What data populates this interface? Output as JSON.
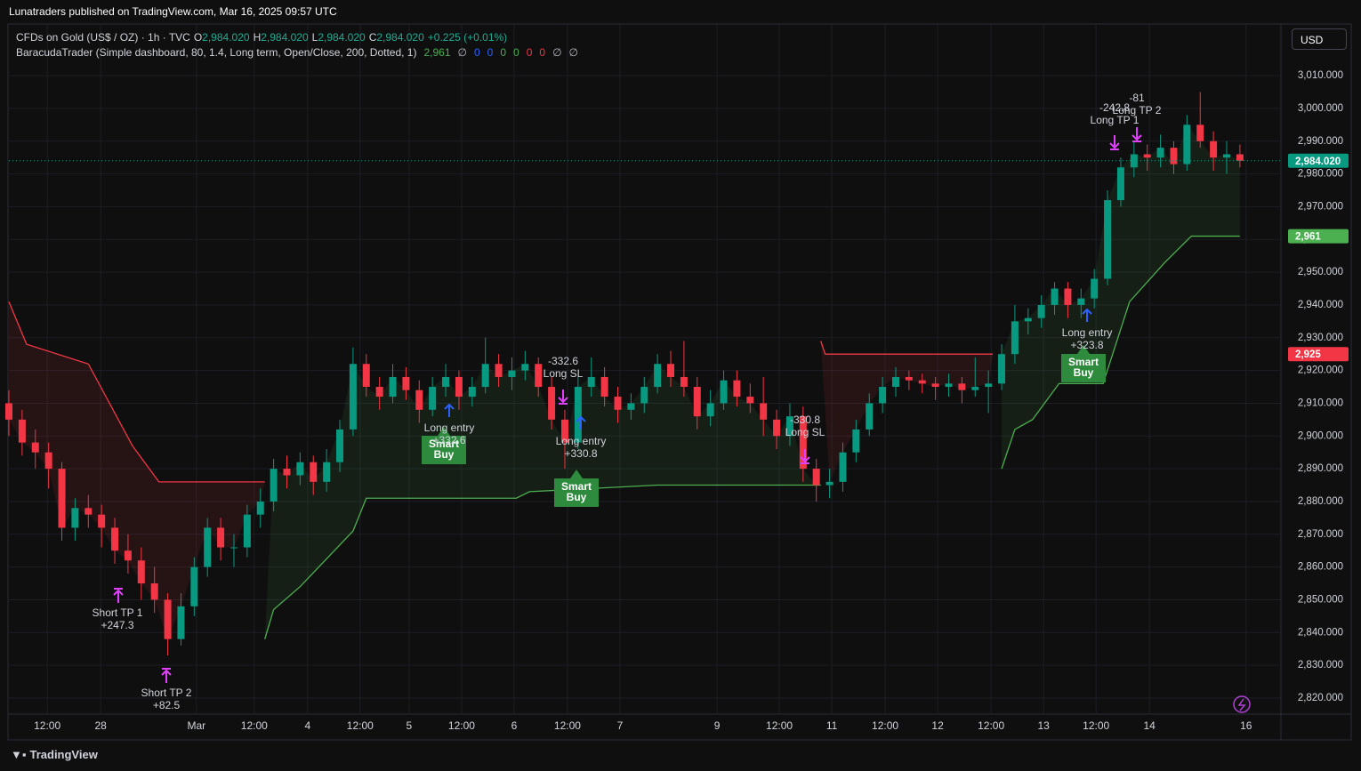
{
  "header": {
    "title": "Lunatraders published on TradingView.com, Mar 16, 2025 09:57 UTC"
  },
  "footer": {
    "brand": "TradingView"
  },
  "currency": "USD",
  "legend": {
    "symbol": "CFDs on Gold (US$ / OZ) · 1h · TVC",
    "ohlc": [
      {
        "key": "O",
        "value": "2,984.020"
      },
      {
        "key": "H",
        "value": "2,984.020"
      },
      {
        "key": "L",
        "value": "2,984.020"
      },
      {
        "key": "C",
        "value": "2,984.020"
      }
    ],
    "change": "+0.225 (+0.01%)",
    "indicator": "BaracudaTrader (Simple dashboard, 80, 1.4, Long term, Open/Close, 200, Dotted, 1)",
    "indicator_values": [
      {
        "text": "2,961",
        "color": "#4caf50"
      },
      {
        "text": "∅",
        "color": "#b2b5be"
      },
      {
        "text": "0",
        "color": "#2962ff"
      },
      {
        "text": "0",
        "color": "#2962ff"
      },
      {
        "text": "0",
        "color": "#4caf50"
      },
      {
        "text": "0",
        "color": "#4caf50"
      },
      {
        "text": "0",
        "color": "#f23645"
      },
      {
        "text": "0",
        "color": "#f23645"
      },
      {
        "text": "∅",
        "color": "#b2b5be"
      },
      {
        "text": "∅",
        "color": "#b2b5be"
      }
    ]
  },
  "chart_data": {
    "type": "candlestick",
    "up_color": "#089981",
    "down_color": "#f23645",
    "t": [
      0,
      3,
      6,
      9,
      12,
      15,
      18,
      21,
      24,
      27,
      30,
      33,
      36,
      39,
      42,
      45,
      48,
      51,
      54,
      57,
      60,
      63,
      66,
      69,
      72,
      75,
      78,
      81,
      84,
      87,
      90,
      93,
      96,
      99,
      102,
      105,
      108,
      111,
      114,
      117,
      120,
      123,
      126,
      129,
      132,
      135,
      138,
      141,
      144,
      147,
      150,
      153,
      156,
      159,
      162,
      165,
      168,
      171,
      174,
      177,
      180,
      183,
      186,
      189,
      192,
      195,
      198,
      201,
      204,
      207,
      210,
      213,
      216,
      219,
      222,
      225,
      228,
      231,
      234,
      237,
      240,
      243,
      246,
      249,
      252,
      255,
      258,
      261,
      264,
      267,
      270,
      273,
      276,
      279
    ],
    "ohlc": [
      [
        2910,
        2914,
        2900,
        2905
      ],
      [
        2905,
        2908,
        2894,
        2898
      ],
      [
        2898,
        2902,
        2890,
        2895
      ],
      [
        2895,
        2898,
        2884,
        2890
      ],
      [
        2890,
        2892,
        2868,
        2872
      ],
      [
        2872,
        2881,
        2868,
        2878
      ],
      [
        2878,
        2882,
        2872,
        2876
      ],
      [
        2876,
        2879,
        2866,
        2872
      ],
      [
        2872,
        2875,
        2861,
        2865
      ],
      [
        2865,
        2870,
        2858,
        2862
      ],
      [
        2862,
        2866,
        2850,
        2855
      ],
      [
        2855,
        2860,
        2846,
        2850
      ],
      [
        2850,
        2852,
        2833,
        2838
      ],
      [
        2838,
        2852,
        2836,
        2848
      ],
      [
        2848,
        2863,
        2845,
        2860
      ],
      [
        2860,
        2875,
        2857,
        2872
      ],
      [
        2872,
        2875,
        2862,
        2866
      ],
      [
        2866,
        2870,
        2860,
        2866
      ],
      [
        2866,
        2879,
        2863,
        2876
      ],
      [
        2876,
        2884,
        2872,
        2880
      ],
      [
        2880,
        2893,
        2877,
        2890
      ],
      [
        2890,
        2894,
        2884,
        2888
      ],
      [
        2888,
        2895,
        2885,
        2892
      ],
      [
        2892,
        2894,
        2882,
        2886
      ],
      [
        2886,
        2896,
        2883,
        2892
      ],
      [
        2892,
        2905,
        2889,
        2902
      ],
      [
        2902,
        2927,
        2900,
        2922
      ],
      [
        2922,
        2925,
        2912,
        2915
      ],
      [
        2915,
        2918,
        2908,
        2912
      ],
      [
        2912,
        2922,
        2910,
        2918
      ],
      [
        2918,
        2921,
        2911,
        2914
      ],
      [
        2914,
        2917,
        2904,
        2908
      ],
      [
        2908,
        2918,
        2906,
        2915
      ],
      [
        2915,
        2922,
        2912,
        2918
      ],
      [
        2918,
        2920,
        2908,
        2912
      ],
      [
        2912,
        2918,
        2909,
        2915
      ],
      [
        2915,
        2930,
        2913,
        2922
      ],
      [
        2922,
        2925,
        2915,
        2918
      ],
      [
        2918,
        2924,
        2914,
        2920
      ],
      [
        2920,
        2926,
        2917,
        2922
      ],
      [
        2922,
        2924,
        2912,
        2915
      ],
      [
        2915,
        2918,
        2902,
        2905
      ],
      [
        2905,
        2908,
        2890,
        2898
      ],
      [
        2898,
        2918,
        2896,
        2915
      ],
      [
        2915,
        2924,
        2912,
        2918
      ],
      [
        2918,
        2921,
        2909,
        2912
      ],
      [
        2912,
        2915,
        2904,
        2908
      ],
      [
        2908,
        2913,
        2905,
        2910
      ],
      [
        2910,
        2918,
        2907,
        2915
      ],
      [
        2915,
        2925,
        2913,
        2922
      ],
      [
        2922,
        2926,
        2915,
        2918
      ],
      [
        2918,
        2929,
        2912,
        2915
      ],
      [
        2915,
        2918,
        2902,
        2906
      ],
      [
        2906,
        2914,
        2903,
        2910
      ],
      [
        2910,
        2920,
        2908,
        2917
      ],
      [
        2917,
        2920,
        2909,
        2912
      ],
      [
        2912,
        2916,
        2907,
        2910
      ],
      [
        2910,
        2918,
        2900,
        2905
      ],
      [
        2905,
        2908,
        2896,
        2900
      ],
      [
        2900,
        2910,
        2897,
        2906
      ],
      [
        2906,
        2909,
        2886,
        2890
      ],
      [
        2890,
        2893,
        2880,
        2885
      ],
      [
        2885,
        2890,
        2881,
        2886
      ],
      [
        2886,
        2898,
        2883,
        2895
      ],
      [
        2895,
        2905,
        2892,
        2902
      ],
      [
        2902,
        2913,
        2900,
        2910
      ],
      [
        2910,
        2918,
        2907,
        2915
      ],
      [
        2915,
        2921,
        2912,
        2918
      ],
      [
        2918,
        2920,
        2914,
        2917
      ],
      [
        2917,
        2919,
        2913,
        2916
      ],
      [
        2916,
        2918,
        2911,
        2915
      ],
      [
        2915,
        2919,
        2912,
        2916
      ],
      [
        2916,
        2918,
        2910,
        2914
      ],
      [
        2914,
        2924,
        2912,
        2915
      ],
      [
        2915,
        2920,
        2907,
        2916
      ],
      [
        2916,
        2928,
        2914,
        2925
      ],
      [
        2925,
        2940,
        2922,
        2935
      ],
      [
        2935,
        2939,
        2931,
        2936
      ],
      [
        2936,
        2943,
        2933,
        2940
      ],
      [
        2940,
        2947,
        2937,
        2945
      ],
      [
        2945,
        2947,
        2936,
        2940
      ],
      [
        2940,
        2945,
        2936,
        2942
      ],
      [
        2942,
        2951,
        2939,
        2948
      ],
      [
        2948,
        2975,
        2946,
        2972
      ],
      [
        2972,
        2985,
        2970,
        2982
      ],
      [
        2982,
        2990,
        2979,
        2986
      ],
      [
        2986,
        2989,
        2981,
        2985
      ],
      [
        2985,
        2992,
        2982,
        2988
      ],
      [
        2988,
        2990,
        2980,
        2983
      ],
      [
        2983,
        2998,
        2981,
        2995
      ],
      [
        2995,
        3005,
        2988,
        2990
      ],
      [
        2990,
        2993,
        2981,
        2985
      ],
      [
        2985,
        2990,
        2980,
        2986
      ],
      [
        2986,
        2989,
        2982,
        2984
      ]
    ],
    "trail": [
      {
        "color": "#f23645",
        "t": [
          0,
          4,
          18,
          28,
          34,
          58
        ],
        "values": [
          2941,
          2928,
          2922,
          2897,
          2886,
          2886
        ]
      },
      {
        "color": "#4caf50",
        "t": [
          58,
          60,
          66,
          78,
          81,
          115,
          118,
          147,
          184
        ],
        "values": [
          2838,
          2847,
          2854,
          2871,
          2881,
          2881,
          2883,
          2885,
          2885
        ]
      },
      {
        "color": "#f23645",
        "t": [
          184,
          185,
          223
        ],
        "values": [
          2929,
          2925,
          2925
        ]
      },
      {
        "color": "#4caf50",
        "t": [
          225,
          228,
          232,
          238,
          248,
          254,
          262,
          268,
          279
        ],
        "values": [
          2890,
          2902,
          2905,
          2916,
          2916,
          2941,
          2953,
          2961,
          2961
        ]
      }
    ],
    "xlim": [
      0,
      288.3
    ],
    "xticks": [
      {
        "value": 8.7,
        "label": "12:00"
      },
      {
        "value": 20.8,
        "label": "28"
      },
      {
        "value": 42.5,
        "label": "Mar"
      },
      {
        "value": 55.6,
        "label": "12:00"
      },
      {
        "value": 67.7,
        "label": "4"
      },
      {
        "value": 79.6,
        "label": "12:00"
      },
      {
        "value": 90.7,
        "label": "5"
      },
      {
        "value": 102.6,
        "label": "12:00"
      },
      {
        "value": 114.5,
        "label": "6"
      },
      {
        "value": 126.6,
        "label": "12:00"
      },
      {
        "value": 138.5,
        "label": "7"
      },
      {
        "value": 160.5,
        "label": "9"
      },
      {
        "value": 174.6,
        "label": "12:00"
      },
      {
        "value": 186.5,
        "label": "11"
      },
      {
        "value": 198.6,
        "label": "12:00"
      },
      {
        "value": 210.5,
        "label": "12"
      },
      {
        "value": 222.6,
        "label": "12:00"
      },
      {
        "value": 234.5,
        "label": "13"
      },
      {
        "value": 246.4,
        "label": "12:00"
      },
      {
        "value": 258.5,
        "label": "14"
      },
      {
        "value": 280.4,
        "label": "16"
      }
    ],
    "ylim": [
      2815.1,
      3025.5
    ],
    "yticks": [
      {
        "value": 2820,
        "label": "2,820.000"
      },
      {
        "value": 2830,
        "label": "2,830.000"
      },
      {
        "value": 2840,
        "label": "2,840.000"
      },
      {
        "value": 2850,
        "label": "2,850.000"
      },
      {
        "value": 2860,
        "label": "2,860.000"
      },
      {
        "value": 2870,
        "label": "2,870.000"
      },
      {
        "value": 2880,
        "label": "2,880.000"
      },
      {
        "value": 2890,
        "label": "2,890.000"
      },
      {
        "value": 2900,
        "label": "2,900.000"
      },
      {
        "value": 2910,
        "label": "2,910.000"
      },
      {
        "value": 2920,
        "label": "2,920.000"
      },
      {
        "value": 2930,
        "label": "2,930.000"
      },
      {
        "value": 2940,
        "label": "2,940.000"
      },
      {
        "value": 2950,
        "label": "2,950.000"
      },
      {
        "value": 2960,
        "label": "2,960.000"
      },
      {
        "value": 2970,
        "label": "2,970.000"
      },
      {
        "value": 2980,
        "label": "2,980.000"
      },
      {
        "value": 2990,
        "label": "2,990.000"
      },
      {
        "value": 3000,
        "label": "3,000.000"
      },
      {
        "value": 3010,
        "label": "3,010.000"
      }
    ],
    "grid": true,
    "price_labels": [
      {
        "value": 2984.02,
        "label": "2,984.020",
        "color": "#089981"
      },
      {
        "value": 2961,
        "label": "2,961",
        "color": "#4caf50"
      },
      {
        "value": 2925,
        "label": "2,925",
        "color": "#f23645"
      }
    ],
    "annotations": [
      {
        "lines": [
          "Short TP 1",
          "+247.3"
        ]
      },
      {
        "lines": [
          "Short TP 2",
          "+82.5"
        ]
      },
      {
        "lines": [
          "Long entry",
          "+332.6"
        ]
      },
      {
        "lines": [
          "-332.6",
          "Long SL"
        ]
      },
      {
        "lines": [
          "Long entry",
          "+330.8"
        ]
      },
      {
        "lines": [
          "-330.8",
          "Long SL"
        ]
      },
      {
        "lines": [
          "Long entry",
          "+323.8"
        ]
      },
      {
        "lines": [
          "-242.8",
          "Long TP 1"
        ]
      },
      {
        "lines": [
          "-81",
          "Long TP 2"
        ]
      }
    ],
    "signals": [
      {
        "lines": [
          "Smart",
          "Buy"
        ]
      },
      {
        "lines": [
          "Smart",
          "Buy"
        ]
      },
      {
        "lines": [
          "Smart",
          "Buy"
        ]
      }
    ]
  }
}
